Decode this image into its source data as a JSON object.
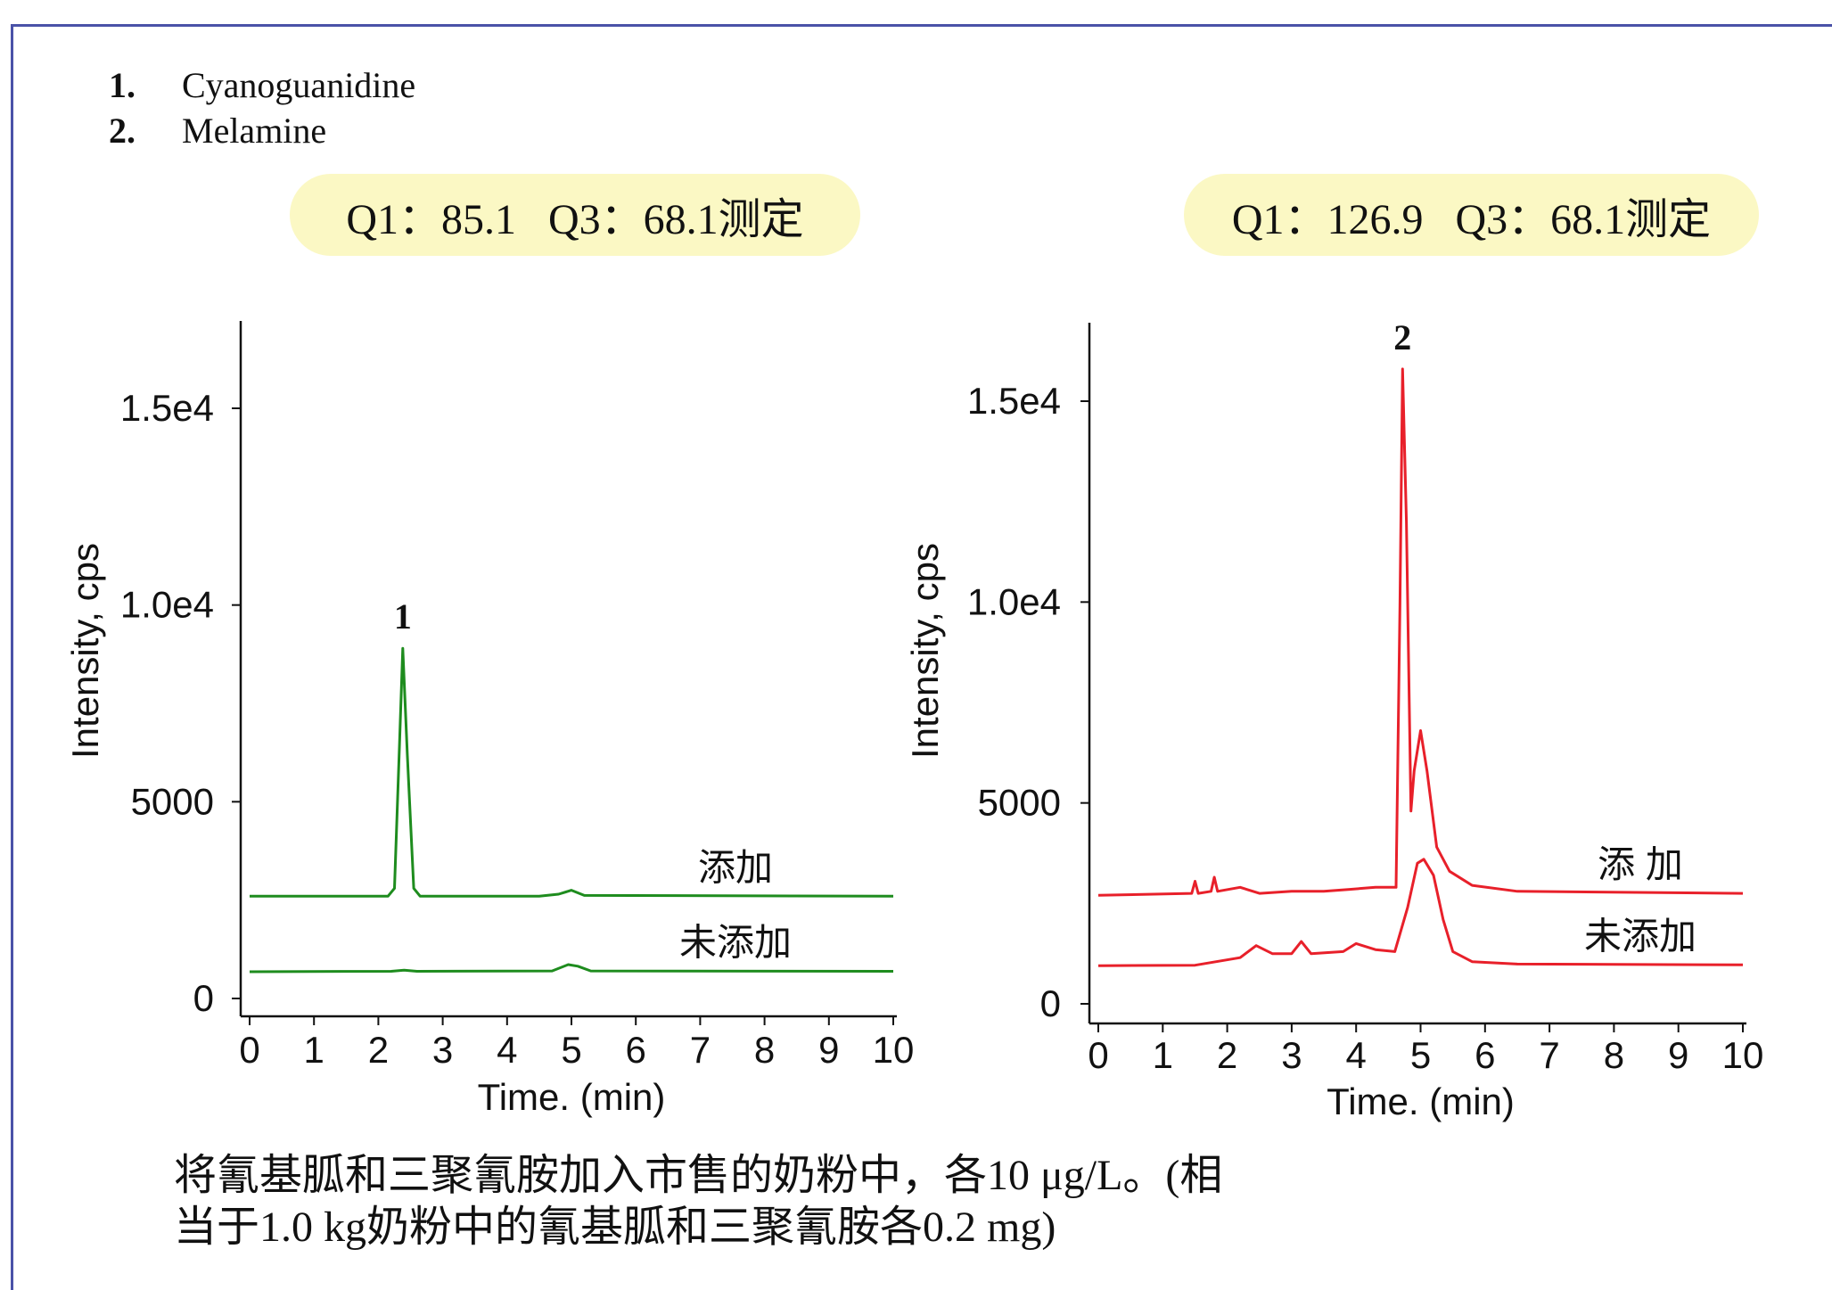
{
  "legend": [
    {
      "num": "1.",
      "name": "Cyanoguanidine"
    },
    {
      "num": "2.",
      "name": "Melamine"
    }
  ],
  "pills": {
    "left": "Q1：85.1   Q3：68.1测定",
    "right": "Q1：126.9   Q3：68.1测定"
  },
  "caption": {
    "line1": "将氰基胍和三聚氰胺加入市售的奶粉中，各10 μg/L。(相",
    "line2": "当于1.0 kg奶粉中的氰基胍和三聚氰胺各0.2 mg)"
  },
  "chart_data": [
    {
      "type": "line",
      "xlabel": "Time. (min)",
      "ylabel": "Intensity, cps",
      "xlim": [
        0,
        10
      ],
      "xticks": [
        "0",
        "1",
        "2",
        "3",
        "4",
        "5",
        "6",
        "7",
        "8",
        "9",
        "10"
      ],
      "yticks": [
        "0",
        "5000",
        "1.0e4",
        "1.5e4"
      ],
      "color": "#1e8c1e",
      "series": [
        {
          "name": "添加",
          "points": [
            [
              0,
              2600
            ],
            [
              2.15,
              2600
            ],
            [
              2.25,
              2800
            ],
            [
              2.33,
              6500
            ],
            [
              2.38,
              8900
            ],
            [
              2.45,
              6200
            ],
            [
              2.55,
              2800
            ],
            [
              2.65,
              2600
            ],
            [
              4.5,
              2600
            ],
            [
              4.8,
              2650
            ],
            [
              5.0,
              2750
            ],
            [
              5.2,
              2620
            ],
            [
              10,
              2600
            ]
          ]
        },
        {
          "name": "未添加",
          "points": [
            [
              0,
              680
            ],
            [
              2.2,
              690
            ],
            [
              2.4,
              720
            ],
            [
              2.6,
              690
            ],
            [
              4.7,
              700
            ],
            [
              4.95,
              860
            ],
            [
              5.1,
              820
            ],
            [
              5.3,
              700
            ],
            [
              10,
              690
            ]
          ]
        }
      ],
      "peak_labels": [
        {
          "x": 2.38,
          "text": "1"
        }
      ]
    },
    {
      "type": "line",
      "xlabel": "Time. (min)",
      "ylabel": "Intensity, cps",
      "xlim": [
        0,
        10
      ],
      "xticks": [
        "0",
        "1",
        "2",
        "3",
        "4",
        "5",
        "6",
        "7",
        "8",
        "9",
        "10"
      ],
      "yticks": [
        "0",
        "5000",
        "1.0e4",
        "1.5e4"
      ],
      "color": "#e8202a",
      "series": [
        {
          "name": "添 加",
          "points": [
            [
              0,
              2700
            ],
            [
              1.45,
              2750
            ],
            [
              1.5,
              3050
            ],
            [
              1.55,
              2750
            ],
            [
              1.75,
              2800
            ],
            [
              1.8,
              3150
            ],
            [
              1.85,
              2800
            ],
            [
              2.2,
              2900
            ],
            [
              2.5,
              2750
            ],
            [
              3.0,
              2800
            ],
            [
              3.5,
              2800
            ],
            [
              3.9,
              2850
            ],
            [
              4.3,
              2900
            ],
            [
              4.5,
              2900
            ],
            [
              4.62,
              2900
            ],
            [
              4.68,
              10000
            ],
            [
              4.72,
              15800
            ],
            [
              4.78,
              12000
            ],
            [
              4.85,
              4800
            ],
            [
              4.9,
              5800
            ],
            [
              5.0,
              6800
            ],
            [
              5.1,
              5800
            ],
            [
              5.25,
              3900
            ],
            [
              5.45,
              3300
            ],
            [
              5.8,
              2950
            ],
            [
              6.5,
              2800
            ],
            [
              10,
              2750
            ]
          ]
        },
        {
          "name": "未添加",
          "points": [
            [
              0,
              950
            ],
            [
              1.5,
              960
            ],
            [
              2.2,
              1150
            ],
            [
              2.45,
              1450
            ],
            [
              2.7,
              1250
            ],
            [
              3.0,
              1250
            ],
            [
              3.15,
              1550
            ],
            [
              3.3,
              1250
            ],
            [
              3.8,
              1300
            ],
            [
              4.0,
              1500
            ],
            [
              4.3,
              1350
            ],
            [
              4.6,
              1300
            ],
            [
              4.8,
              2400
            ],
            [
              4.95,
              3500
            ],
            [
              5.05,
              3600
            ],
            [
              5.2,
              3200
            ],
            [
              5.35,
              2100
            ],
            [
              5.5,
              1300
            ],
            [
              5.8,
              1050
            ],
            [
              6.5,
              990
            ],
            [
              10,
              970
            ]
          ]
        }
      ],
      "peak_labels": [
        {
          "x": 4.72,
          "text": "2"
        }
      ]
    }
  ]
}
